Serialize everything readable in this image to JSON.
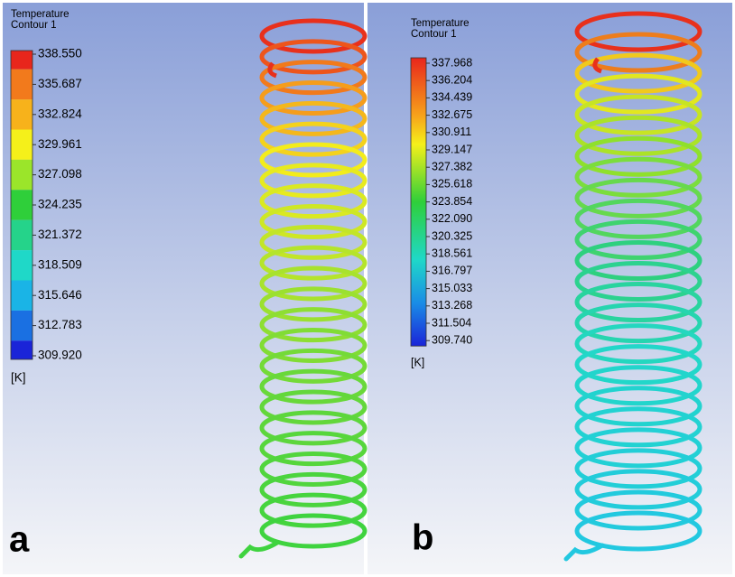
{
  "panels": [
    {
      "label": "a",
      "legend": {
        "title": [
          "Temperature",
          "Contour 1"
        ],
        "ticks": [
          "338.550",
          "335.687",
          "332.824",
          "329.961",
          "327.098",
          "324.235",
          "321.372",
          "318.509",
          "315.646",
          "312.783",
          "309.920"
        ],
        "unit": "[K]"
      }
    },
    {
      "label": "b",
      "legend": {
        "title": [
          "Temperature",
          "Contour 1"
        ],
        "ticks": [
          "337.968",
          "336.204",
          "334.439",
          "332.675",
          "330.911",
          "329.147",
          "327.382",
          "325.618",
          "323.854",
          "322.090",
          "320.325",
          "318.561",
          "316.797",
          "315.033",
          "313.268",
          "311.504",
          "309.740"
        ],
        "unit": "[K]"
      }
    }
  ]
}
